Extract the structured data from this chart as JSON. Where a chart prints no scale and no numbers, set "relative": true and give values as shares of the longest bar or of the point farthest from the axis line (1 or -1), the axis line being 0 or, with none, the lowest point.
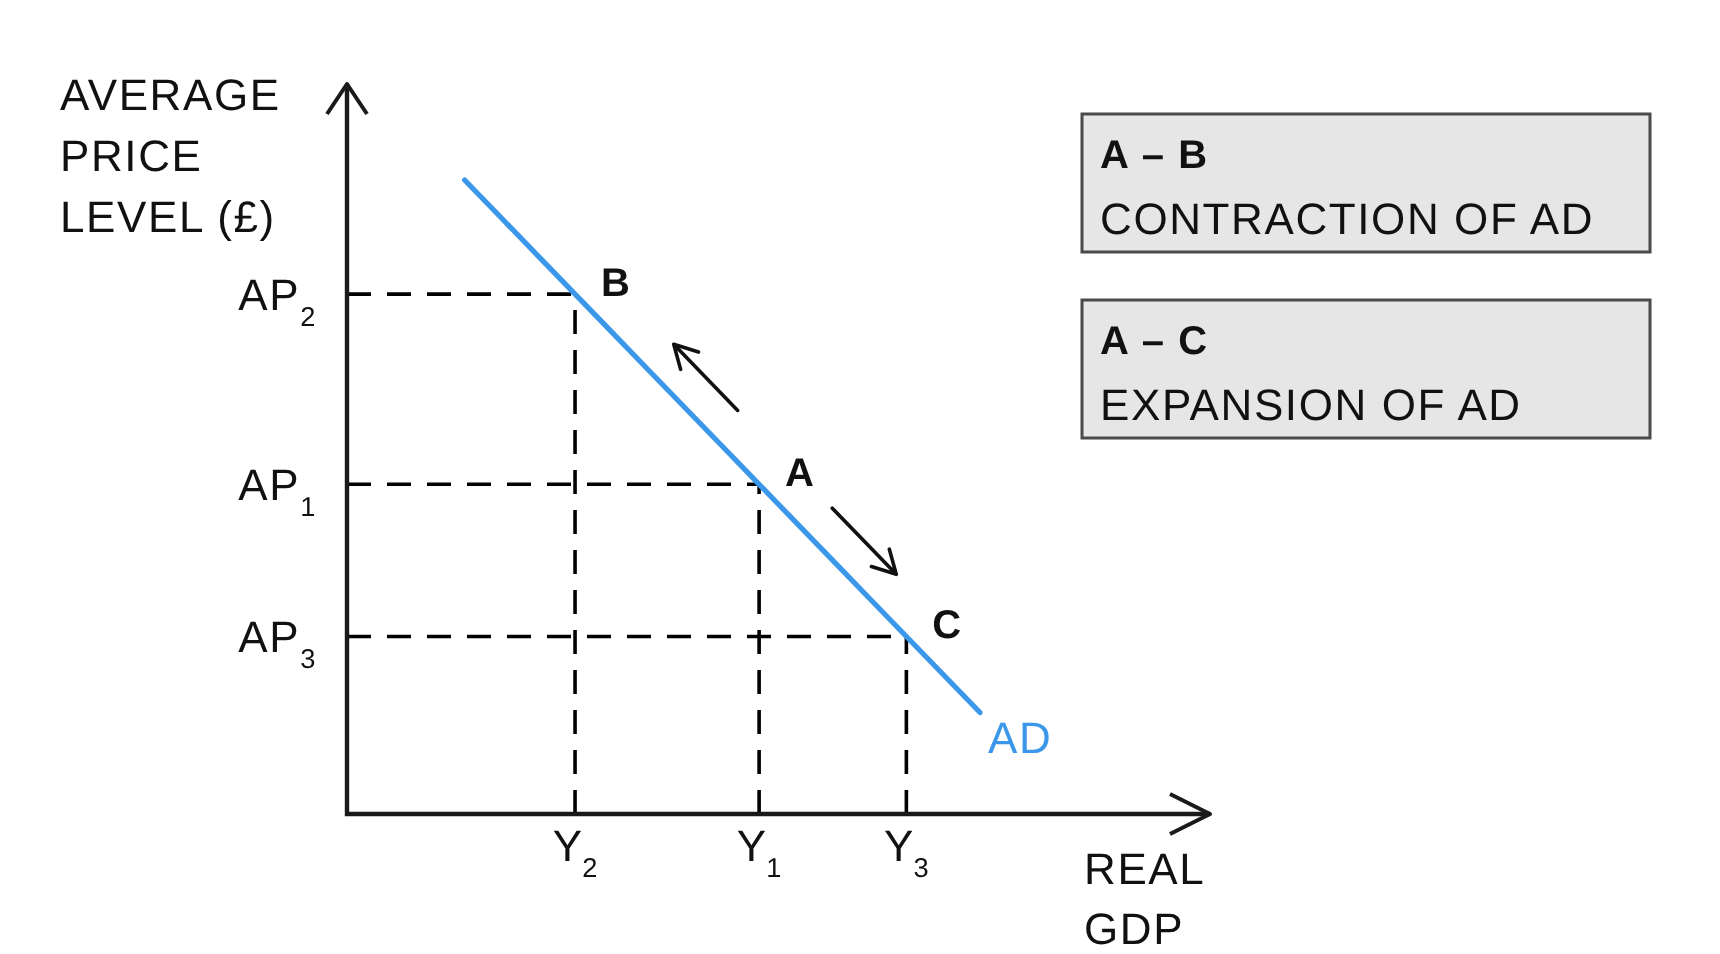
{
  "chart_data": {
    "type": "line",
    "relative": true,
    "xlabel": "REAL GDP",
    "ylabel": "AVERAGE PRICE LEVEL (£)",
    "marker": "none",
    "categories": [
      null,
      null,
      null,
      "Y$_{2}$",
      null,
      null,
      null,
      null,
      "Y$_{1}$",
      null,
      null,
      null,
      "Y$_{3}$",
      null,
      null
    ],
    "series": [
      {
        "name": "AD",
        "color": "#3b97e9",
        "values": [
          1,
          0.94,
          0.88,
          0.82,
          0.76,
          0.7,
          0.64,
          0.58,
          0.52,
          0.46,
          0.4,
          0.34,
          0.28,
          0.22,
          0.16
        ]
      }
    ],
    "ref_lines": [
      {
        "axis": "y",
        "value": 0.82,
        "label": "AP$_{2}$",
        "color": "#000000",
        "line_style": "dashed"
      },
      {
        "axis": "y",
        "value": 0.52,
        "label": "AP$_{1}$",
        "color": "#000000",
        "line_style": "dashed"
      },
      {
        "axis": "y",
        "value": 0.28,
        "label": "AP$_{3}$",
        "color": "#000000",
        "line_style": "dashed"
      },
      {
        "axis": "x",
        "value": "Y$_{2}$",
        "color": "#000000",
        "line_style": "dashed"
      },
      {
        "axis": "x",
        "value": "Y$_{1}$",
        "color": "#000000",
        "line_style": "dashed"
      },
      {
        "axis": "x",
        "value": "Y$_{3}$",
        "color": "#000000",
        "line_style": "dashed"
      }
    ],
    "annotations": [
      {
        "text": "B",
        "x": "Y$_{2}$",
        "y": 0.82
      },
      {
        "text": "A",
        "x": "Y$_{1}$",
        "y": 0.52
      },
      {
        "text": "C",
        "x": "Y$_{3}$",
        "y": 0.28
      },
      "A – B\nCONTRACTION OF AD",
      "A – C\nEXPANSION OF AD"
    ]
  }
}
